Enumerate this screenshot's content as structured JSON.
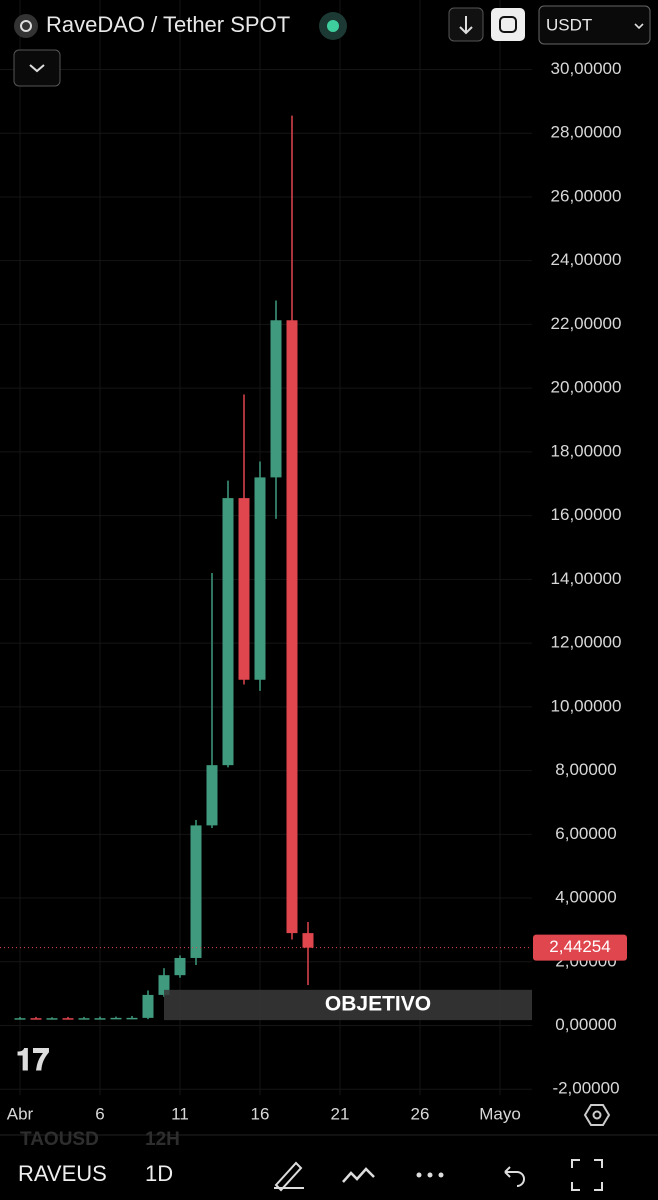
{
  "chart_data": {
    "type": "candlestick",
    "title": "RaveDAO / Tether SPOT",
    "currency": "USDT",
    "x": [
      1,
      2,
      3,
      4,
      5,
      6,
      7,
      8,
      9,
      10,
      11,
      12,
      13,
      14,
      15,
      16,
      17,
      18,
      19
    ],
    "open": [
      0.22,
      0.23,
      0.22,
      0.23,
      0.22,
      0.23,
      0.23,
      0.24,
      0.24,
      0.96,
      1.58,
      2.12,
      6.28,
      8.17,
      16.55,
      10.85,
      17.2,
      22.13,
      2.9
    ],
    "high": [
      0.27,
      0.27,
      0.26,
      0.27,
      0.27,
      0.28,
      0.28,
      0.3,
      1.1,
      1.8,
      2.2,
      6.45,
      14.2,
      17.1,
      19.8,
      17.7,
      22.75,
      28.55,
      3.25
    ],
    "low": [
      0.19,
      0.2,
      0.19,
      0.2,
      0.2,
      0.2,
      0.21,
      0.22,
      0.2,
      0.9,
      1.5,
      1.9,
      6.2,
      8.1,
      10.7,
      10.5,
      15.9,
      2.7,
      1.27
    ],
    "close": [
      0.23,
      0.22,
      0.23,
      0.22,
      0.23,
      0.23,
      0.24,
      0.24,
      0.96,
      1.58,
      2.12,
      6.28,
      8.17,
      16.55,
      10.85,
      17.2,
      22.13,
      2.9,
      2.44254
    ],
    "up_color": "#3f9a7e",
    "down_color": "#e0464e",
    "xlim": [
      -0.25,
      33
    ],
    "xticks": [
      {
        "value": 1,
        "label": "Abr"
      },
      6,
      11,
      16,
      21,
      26,
      {
        "value": 31,
        "label": "Mayo"
      }
    ],
    "ylim": [
      -2.18,
      32.18
    ],
    "yticks": [
      {
        "value": -2,
        "label": "-2,00000"
      },
      {
        "value": 0,
        "label": "0,00000"
      },
      {
        "value": 2,
        "label": "2,00000"
      },
      {
        "value": 4,
        "label": "4,00000"
      },
      {
        "value": 6,
        "label": "6,00000"
      },
      {
        "value": 8,
        "label": "8,00000"
      },
      {
        "value": 10,
        "label": "10,00000"
      },
      {
        "value": 12,
        "label": "12,00000"
      },
      {
        "value": 14,
        "label": "14,00000"
      },
      {
        "value": 16,
        "label": "16,00000"
      },
      {
        "value": 18,
        "label": "18,00000"
      },
      {
        "value": 20,
        "label": "20,00000"
      },
      {
        "value": 22,
        "label": "22,00000"
      },
      {
        "value": 24,
        "label": "24,00000"
      },
      {
        "value": 26,
        "label": "26,00000"
      },
      {
        "value": 28,
        "label": "28,00000"
      },
      {
        "value": 30,
        "label": "30,00000"
      }
    ],
    "grid": true,
    "last_price": {
      "value": 2.44254,
      "label": "2,44254"
    },
    "zone": {
      "label": "OBJETIVO",
      "from": 10,
      "low": 0.17,
      "high": 1.12
    }
  },
  "toolbar": {
    "symbol": "RAVEUS",
    "interval": "1D",
    "ghost_symbol": "TAOUSD",
    "ghost_interval": "12H"
  }
}
